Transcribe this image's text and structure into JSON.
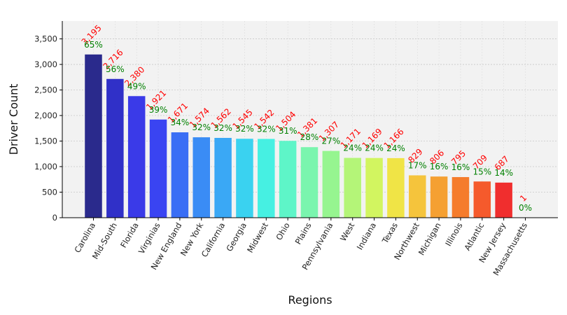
{
  "chart_data": {
    "type": "bar",
    "title": "",
    "xlabel": "Regions",
    "ylabel": "Driver Count",
    "ylim": [
      0,
      3850
    ],
    "yticks": [
      0,
      500,
      1000,
      1500,
      2000,
      2500,
      3000,
      3500
    ],
    "ytick_labels": [
      "0",
      "500",
      "1,000",
      "1,500",
      "2,000",
      "2,500",
      "3,000",
      "3,500"
    ],
    "grid": true,
    "categories": [
      "Carolina",
      "Mid-South",
      "Florida",
      "Virginias",
      "New England",
      "New York",
      "California",
      "Georgia",
      "Midwest",
      "Ohio",
      "Plains",
      "Pennsylvania",
      "West",
      "Indiana",
      "Texas",
      "Northwest",
      "Michigan",
      "Illinois",
      "Atlantic",
      "New Jersey",
      "Massachusetts"
    ],
    "values": [
      3195,
      2716,
      2380,
      1921,
      1671,
      1574,
      1562,
      1545,
      1542,
      1504,
      1381,
      1307,
      1171,
      1169,
      1166,
      829,
      806,
      795,
      709,
      687,
      1
    ],
    "value_labels": [
      "3,195",
      "2,716",
      "2,380",
      "1,921",
      "1,671",
      "1,574",
      "1,562",
      "1,545",
      "1,542",
      "1,504",
      "1,381",
      "1,307",
      "1,171",
      "1,169",
      "1,166",
      "829",
      "806",
      "795",
      "709",
      "687",
      "1"
    ],
    "percent_labels": [
      "65%",
      "56%",
      "49%",
      "39%",
      "34%",
      "32%",
      "32%",
      "32%",
      "32%",
      "31%",
      "28%",
      "27%",
      "24%",
      "24%",
      "24%",
      "17%",
      "16%",
      "16%",
      "15%",
      "14%",
      "0%"
    ],
    "colors": [
      "#2a2a8c",
      "#3030c8",
      "#3a3ae8",
      "#3a44f2",
      "#3a6ef5",
      "#3a8cf5",
      "#3aa8f5",
      "#3ad2f0",
      "#46f0e2",
      "#5ef5c8",
      "#7af5ae",
      "#96f590",
      "#b4f578",
      "#d2f560",
      "#f0e446",
      "#f5c43c",
      "#f5a032",
      "#f57c2c",
      "#f55a2c",
      "#f02e2e",
      "#e01414"
    ],
    "value_label_color": "#ff0000",
    "percent_label_color": "#008000",
    "plot_background": "#f2f2f2"
  }
}
